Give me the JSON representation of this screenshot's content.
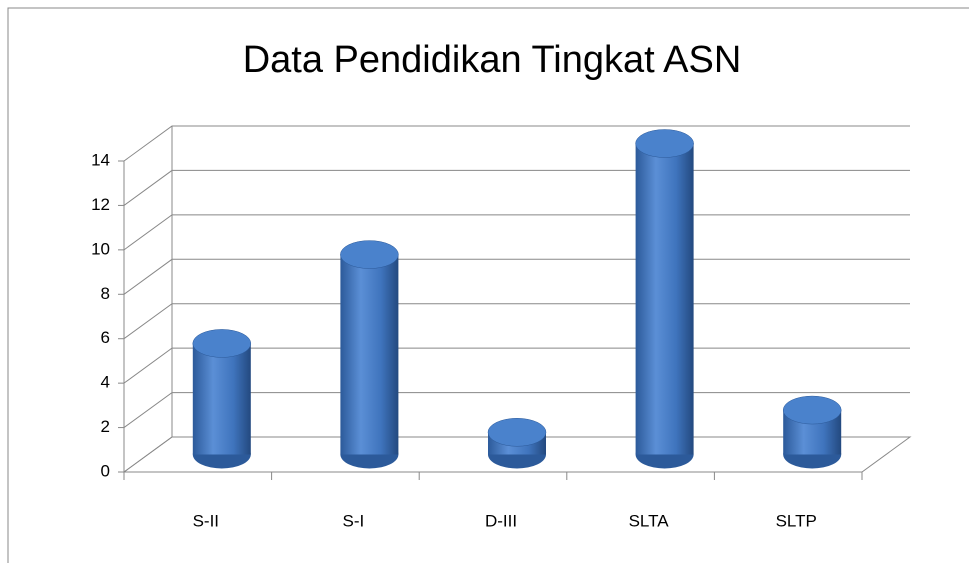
{
  "chart_data": {
    "type": "bar",
    "title": "Data Pendidikan Tingkat ASN",
    "categories": [
      "S-II",
      "S-I",
      "D-III",
      "SLTA",
      "SLTP"
    ],
    "values": [
      5,
      9,
      1,
      14,
      2
    ],
    "color": "#3f74bd",
    "ylim": [
      0,
      14
    ],
    "yticks": [
      0,
      2,
      4,
      6,
      8,
      10,
      12,
      14
    ],
    "grid": true
  }
}
